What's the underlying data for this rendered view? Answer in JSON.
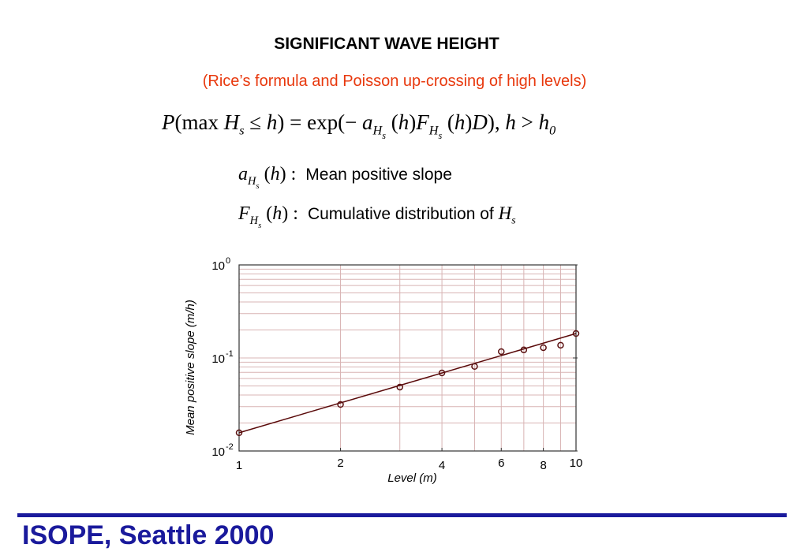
{
  "header": {
    "title": "SIGNIFICANT WAVE HEIGHT",
    "subtitle": "(Rice’s formula and Poisson up-crossing of high levels)"
  },
  "formula": {
    "segments": [
      {
        "text": "P",
        "style": "i"
      },
      {
        "text": "(max ",
        "style": "n"
      },
      {
        "text": "H",
        "style": "i"
      },
      {
        "text": "s",
        "style": "sub"
      },
      {
        "text": " ≤ ",
        "style": "n"
      },
      {
        "text": "h",
        "style": "i"
      },
      {
        "text": ") = exp(− ",
        "style": "n"
      },
      {
        "text": "a",
        "style": "i"
      },
      {
        "text": "H",
        "style": "sub"
      },
      {
        "text": "s",
        "style": "subsub"
      },
      {
        "text": " (",
        "style": "n"
      },
      {
        "text": "h",
        "style": "i"
      },
      {
        "text": ")",
        "style": "n"
      },
      {
        "text": "F",
        "style": "i"
      },
      {
        "text": "H",
        "style": "sub"
      },
      {
        "text": "s",
        "style": "subsub"
      },
      {
        "text": " (",
        "style": "n"
      },
      {
        "text": "h",
        "style": "i"
      },
      {
        "text": ")",
        "style": "n"
      },
      {
        "text": "D",
        "style": "i"
      },
      {
        "text": "), ",
        "style": "n"
      },
      {
        "text": "h",
        "style": "i"
      },
      {
        "text": " > ",
        "style": "n"
      },
      {
        "text": "h",
        "style": "i"
      },
      {
        "text": "0",
        "style": "sub"
      }
    ]
  },
  "definitions": [
    {
      "symbol": [
        {
          "text": "a",
          "style": "i"
        },
        {
          "text": "H",
          "style": "sub"
        },
        {
          "text": "s",
          "style": "subsub"
        },
        {
          "text": " (",
          "style": "n"
        },
        {
          "text": "h",
          "style": "i"
        },
        {
          "text": ") :",
          "style": "n"
        }
      ],
      "description": "Mean positive slope",
      "description_symbol": []
    },
    {
      "symbol": [
        {
          "text": "F",
          "style": "i"
        },
        {
          "text": "H",
          "style": "sub"
        },
        {
          "text": "s",
          "style": "subsub"
        },
        {
          "text": " (",
          "style": "n"
        },
        {
          "text": "h",
          "style": "i"
        },
        {
          "text": ") :",
          "style": "n"
        }
      ],
      "description": "Cumulative distribution of ",
      "description_symbol": [
        {
          "text": "H",
          "style": "i"
        },
        {
          "text": "s",
          "style": "sub"
        }
      ]
    }
  ],
  "chart_data": {
    "type": "scatter",
    "xlabel": "Level (m)",
    "ylabel": "Mean positive slope (m/h)",
    "x": [
      1,
      2,
      3,
      4,
      5,
      6,
      7,
      8,
      9,
      10
    ],
    "values": [
      0.0157,
      0.0316,
      0.0486,
      0.069,
      0.081,
      0.117,
      0.122,
      0.129,
      0.137,
      0.183
    ],
    "color": "#5a1010",
    "fit_line": {
      "x": [
        1,
        10
      ],
      "values": [
        0.0157,
        0.183
      ],
      "color": "#5a0a0a"
    },
    "xscale": "log",
    "yscale": "log",
    "xlim": [
      1,
      10
    ],
    "ylim": [
      0.01,
      1
    ],
    "xticks": [
      1,
      2,
      4,
      6,
      8,
      10
    ],
    "yticks": [
      {
        "value": 0.01,
        "label": "10",
        "exponent": "-2"
      },
      {
        "value": 0.1,
        "label": "10",
        "exponent": "-1"
      },
      {
        "value": 1,
        "label": "10",
        "exponent": "0"
      }
    ],
    "minor_xticks": [
      3,
      5,
      7,
      9
    ],
    "minor_yticks": [
      0.02,
      0.03,
      0.04,
      0.05,
      0.06,
      0.07,
      0.08,
      0.09,
      0.2,
      0.3,
      0.4,
      0.5,
      0.6,
      0.7,
      0.8,
      0.9
    ],
    "grid": true,
    "grid_color": "#d8b4b4"
  },
  "footer": {
    "text": "ISOPE, Seattle 2000"
  }
}
